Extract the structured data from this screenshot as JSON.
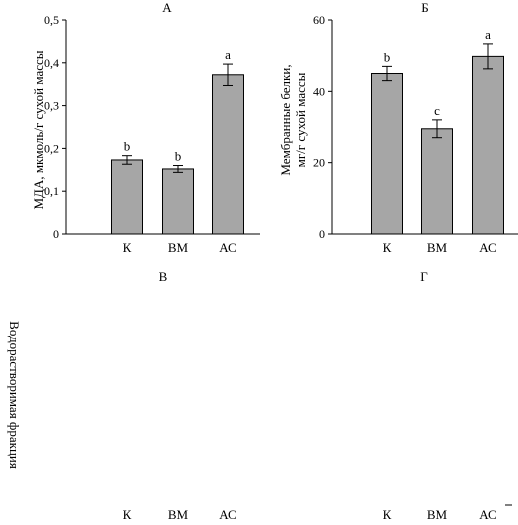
{
  "chart_data": [
    {
      "type": "bar",
      "title": "А",
      "ylabel": "МДА, мкмоль/г сухой массы",
      "categories": [
        "К",
        "ВМ",
        "АС"
      ],
      "values": [
        0.173,
        0.152,
        0.372
      ],
      "errors": [
        0.01,
        0.008,
        0.025
      ],
      "significance": [
        "b",
        "b",
        "a"
      ],
      "ylim": [
        0,
        0.5
      ],
      "yticks": [
        "0",
        "0,1",
        "0,2",
        "0,3",
        "0,4",
        "0,5"
      ],
      "bar_color": "#a6a6a6"
    },
    {
      "type": "bar",
      "title": "Б",
      "ylabel": [
        "Мембранные белки,",
        "мг/г сухой массы"
      ],
      "categories": [
        "К",
        "ВМ",
        "АС"
      ],
      "values": [
        45,
        29.5,
        49.8
      ],
      "errors": [
        2,
        2.5,
        3.5
      ],
      "significance": [
        "b",
        "c",
        "a"
      ],
      "ylim": [
        0,
        60
      ],
      "yticks": [
        "0",
        "20",
        "40",
        "60"
      ],
      "bar_color": "#a6a6a6"
    },
    {
      "type": "bar",
      "title": "В",
      "ylabel": "Водорастворимая фракция",
      "categories": [
        "К",
        "ВМ",
        "АС"
      ],
      "partial": true
    },
    {
      "type": "bar",
      "title": "Г",
      "categories": [
        "К",
        "ВМ",
        "АС"
      ],
      "partial": true
    }
  ]
}
